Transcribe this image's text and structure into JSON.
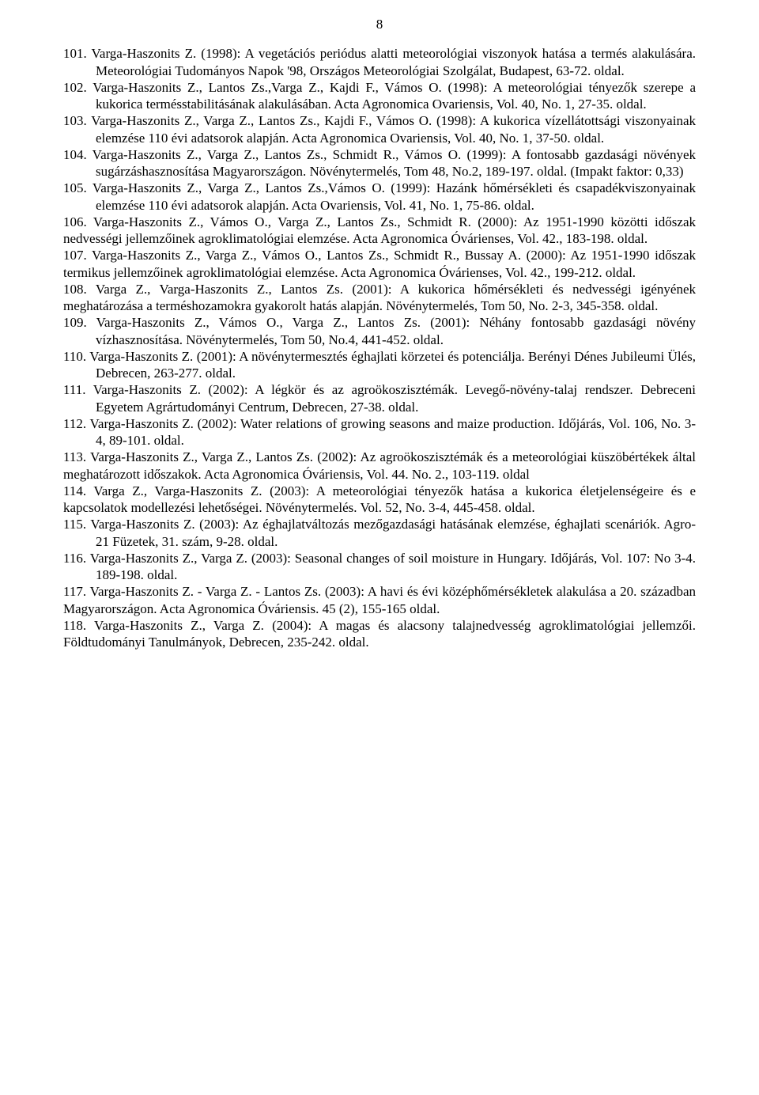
{
  "page_number": "8",
  "entries": [
    {
      "style": "indented",
      "text": "101. Varga-Haszonits Z. (1998): A vegetációs periódus alatti meteorológiai viszonyok hatása a termés alakulására. Meteorológiai Tudományos Napok '98, Országos Meteorológiai Szolgálat, Budapest, 63-72. oldal."
    },
    {
      "style": "indented",
      "text": "102. Varga-Haszonits Z., Lantos Zs.,Varga Z., Kajdi F., Vámos O. (1998): A meteorológiai tényezők szerepe a kukorica termésstabilitásának alakulásában. Acta Agronomica Ovariensis, Vol. 40, No. 1, 27-35. oldal."
    },
    {
      "style": "indented",
      "text": "103. Varga-Haszonits Z., Varga Z., Lantos Zs., Kajdi F., Vámos O. (1998): A kukorica vízellátottsági viszonyainak elemzése 110 évi adatsorok alapján. Acta Agronomica Ovariensis, Vol. 40, No. 1, 37-50. oldal."
    },
    {
      "style": "indented",
      "text": "104. Varga-Haszonits Z., Varga Z., Lantos Zs., Schmidt R., Vámos O. (1999): A fontosabb gazdasági növények sugárzáshasznosítása Magyarországon. Növénytermelés, Tom 48, No.2, 189-197. oldal. (Impakt faktor: 0,33)"
    },
    {
      "style": "indented",
      "text": "105. Varga-Haszonits Z., Varga Z., Lantos Zs.,Vámos O. (1999): Hazánk hőmérsékleti és csapadékviszonyainak elemzése 110 évi adatsorok alapján. Acta Ovariensis, Vol. 41, No. 1, 75-86. oldal."
    },
    {
      "style": "flush",
      "text": "106. Varga-Haszonits Z., Vámos O., Varga Z., Lantos Zs., Schmidt R. (2000): Az 1951-1990 közötti időszak nedvességi jellemzőinek agroklimatológiai elemzése. Acta Agronomica Óvárienses, Vol. 42., 183-198. oldal."
    },
    {
      "style": "flush",
      "text": "107. Varga-Haszonits Z., Varga Z., Vámos O., Lantos Zs., Schmidt R., Bussay A. (2000): Az 1951-1990 időszak termikus jellemzőinek agroklimatológiai elemzése. Acta Agronomica Óvárienses, Vol. 42., 199-212. oldal."
    },
    {
      "style": "flush",
      "text": "108. Varga Z., Varga-Haszonits Z., Lantos Zs. (2001): A kukorica hőmérsékleti és nedvességi igényének meghatározása a terméshozamokra gyakorolt hatás alapján. Növénytermelés, Tom 50, No. 2-3, 345-358. oldal."
    },
    {
      "style": "indented",
      "text": "109. Varga-Haszonits Z., Vámos O., Varga Z., Lantos Zs. (2001):  Néhány fontosabb gazdasági növény vízhasznosítása. Növénytermelés, Tom 50, No.4, 441-452. oldal."
    },
    {
      "style": "indented",
      "text": "110. Varga-Haszonits Z. (2001): A növénytermesztés éghajlati körzetei és potenciálja. Berényi Dénes Jubileumi Ülés, Debrecen, 263-277. oldal."
    },
    {
      "style": "indented",
      "text": "111. Varga-Haszonits Z. (2002): A légkör és az agroökoszisztémák. Levegő-növény-talaj rendszer. Debreceni Egyetem Agrártudományi Centrum, Debrecen, 27-38. oldal."
    },
    {
      "style": "indented",
      "text": "112. Varga-Haszonits Z. (2002): Water relations of growing seasons and maize production. Időjárás, Vol. 106, No. 3-4, 89-101. oldal."
    },
    {
      "style": "flush",
      "text": "113. Varga-Haszonits Z., Varga Z., Lantos Zs. (2002): Az agroökoszisztémák és a meteorológiai küszöbértékek által meghatározott időszakok. Acta Agronomica Óváriensis, Vol. 44. No. 2., 103-119. oldal"
    },
    {
      "style": "flush",
      "text": "114. Varga Z., Varga-Haszonits Z. (2003): A meteorológiai tényezők hatása a kukorica életjelenségeire és e kapcsolatok modellezési lehetőségei. Növénytermelés. Vol. 52, No. 3-4, 445-458. oldal."
    },
    {
      "style": "indented",
      "text": "115. Varga-Haszonits Z. (2003): Az éghajlatváltozás mezőgazdasági hatásának elemzése, éghajlati scenáriók. Agro-21 Füzetek, 31. szám, 9-28. oldal."
    },
    {
      "style": "indented",
      "text": "116. Varga-Haszonits Z., Varga Z. (2003): Seasonal changes of soil moisture in Hungary. Időjárás, Vol. 107: No 3-4. 189-198. oldal."
    },
    {
      "style": "flush",
      "text": "117. Varga-Haszonits Z. - Varga Z. - Lantos Zs. (2003): A havi és évi középhőmérsékletek alakulása a 20. században Magyarországon. Acta Agronomica Óváriensis. 45 (2), 155-165 oldal."
    },
    {
      "style": "flush",
      "text": "118. Varga-Haszonits Z., Varga Z. (2004): A magas és alacsony talajnedvesség agroklimatológiai jellemzői. Földtudományi Tanulmányok, Debrecen, 235-242. oldal."
    }
  ]
}
